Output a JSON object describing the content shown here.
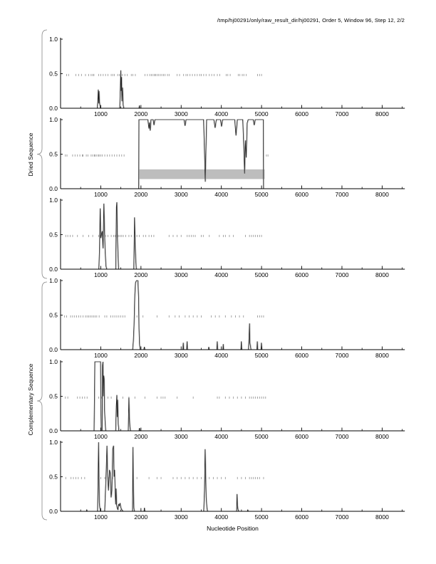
{
  "page": {
    "title": "/tmp/hj00291/only/raw_result_dir/hj00291, Order 5, Window 96, Step 12, 2/2",
    "xlabel": "Nucleotide Position"
  },
  "groups": [
    {
      "label": "Dried Sequence"
    },
    {
      "label": "Complementary Sequence"
    }
  ],
  "colors": {
    "curve": "#222222",
    "curve_shadow": "#aaaaaa",
    "rug": "#999999",
    "shade": "#bdbdbd",
    "axis": "#000000",
    "brace": "#888888"
  },
  "axes": {
    "x_domain": [
      0,
      8560
    ],
    "y_domain": [
      0,
      1
    ],
    "x_major_ticks": [
      1000,
      2000,
      3000,
      4000,
      5000,
      6000,
      7000,
      8000
    ],
    "x_minor_ticks": [
      500,
      1500,
      2500,
      3500,
      4500,
      5500,
      6500,
      7500,
      8500
    ],
    "y_ticks": [
      {
        "value": 1.0,
        "label": "1.0"
      },
      {
        "value": 0.5,
        "label": "0.5"
      },
      {
        "value": 0.0,
        "label": "0.0"
      }
    ]
  },
  "chart_data": [
    {
      "type": "line",
      "group": "Dried Sequence",
      "ylim": [
        0,
        1
      ],
      "xlim": [
        0,
        8560
      ],
      "rug_y": 0.48,
      "curve": [
        [
          0,
          0
        ],
        [
          910,
          0
        ],
        [
          925,
          0.1
        ],
        [
          935,
          0.27
        ],
        [
          945,
          0.07
        ],
        [
          955,
          0.25
        ],
        [
          965,
          0.1
        ],
        [
          975,
          0.05
        ],
        [
          990,
          0
        ],
        [
          1470,
          0
        ],
        [
          1485,
          0.3
        ],
        [
          1495,
          0.55
        ],
        [
          1505,
          0.25
        ],
        [
          1515,
          0.45
        ],
        [
          1525,
          0.1
        ],
        [
          1540,
          0.3
        ],
        [
          1555,
          0.05
        ],
        [
          1570,
          0
        ],
        [
          1950,
          0
        ],
        [
          1958,
          0.04
        ],
        [
          1966,
          0
        ],
        [
          8560,
          0
        ]
      ],
      "rug_x": [
        150,
        200,
        380,
        450,
        520,
        620,
        700,
        760,
        800,
        830,
        950,
        1000,
        1060,
        1120,
        1180,
        1260,
        1300,
        1340,
        1420,
        1460,
        1540,
        1600,
        1660,
        1760,
        1800,
        1860,
        2100,
        2160,
        2220,
        2260,
        2300,
        2340,
        2360,
        2400,
        2440,
        2480,
        2520,
        2560,
        2600,
        2660,
        2700,
        2900,
        2960,
        3060,
        3120,
        3160,
        3220,
        3280,
        3340,
        3400,
        3460,
        3500,
        3560,
        3620,
        3700,
        3760,
        3820,
        3900,
        3960,
        4120,
        4160,
        4220,
        4420,
        4460,
        4520,
        4560,
        4620,
        4900,
        4950,
        5000
      ]
    },
    {
      "type": "line",
      "group": "Dried Sequence",
      "ylim": [
        0,
        1
      ],
      "xlim": [
        0,
        8560
      ],
      "rug_y": 0.48,
      "shaded_region": {
        "x0": 1950,
        "x1": 5080,
        "y0": 0.14,
        "y1": 0.28
      },
      "curve": [
        [
          0,
          0
        ],
        [
          1942,
          0
        ],
        [
          1948,
          1
        ],
        [
          2170,
          1
        ],
        [
          2195,
          0.87
        ],
        [
          2210,
          0.96
        ],
        [
          2228,
          0.84
        ],
        [
          2248,
          1
        ],
        [
          2300,
          1
        ],
        [
          2322,
          0.92
        ],
        [
          2345,
          1
        ],
        [
          3070,
          1
        ],
        [
          3095,
          0.91
        ],
        [
          3120,
          1
        ],
        [
          3555,
          1
        ],
        [
          3580,
          0.5
        ],
        [
          3597,
          0.1
        ],
        [
          3614,
          0.55
        ],
        [
          3632,
          1
        ],
        [
          3810,
          1
        ],
        [
          3842,
          0.88
        ],
        [
          3872,
          1
        ],
        [
          3975,
          1
        ],
        [
          4002,
          0.9
        ],
        [
          4028,
          1
        ],
        [
          4330,
          1
        ],
        [
          4362,
          0.77
        ],
        [
          4395,
          1
        ],
        [
          4530,
          1
        ],
        [
          4556,
          0.6
        ],
        [
          4576,
          0.22
        ],
        [
          4596,
          0.7
        ],
        [
          4616,
          0.45
        ],
        [
          4640,
          0.95
        ],
        [
          4665,
          1
        ],
        [
          4790,
          1
        ],
        [
          4815,
          0.92
        ],
        [
          4840,
          1
        ],
        [
          5040,
          1
        ],
        [
          5047,
          0
        ],
        [
          8560,
          0
        ]
      ],
      "rug_x": [
        120,
        160,
        300,
        360,
        420,
        480,
        540,
        560,
        640,
        680,
        760,
        800,
        840,
        860,
        900,
        940,
        960,
        1000,
        1040,
        1100,
        1160,
        1220,
        1280,
        1340,
        1400,
        1460,
        1520,
        1580,
        5120,
        5160
      ]
    },
    {
      "type": "line",
      "group": "Dried Sequence",
      "ylim": [
        0,
        1
      ],
      "xlim": [
        0,
        8560
      ],
      "rug_y": 0.48,
      "curve": [
        [
          0,
          0
        ],
        [
          950,
          0
        ],
        [
          968,
          0.3
        ],
        [
          983,
          0.88
        ],
        [
          998,
          0.45
        ],
        [
          1015,
          0.5
        ],
        [
          1035,
          0.55
        ],
        [
          1055,
          0.3
        ],
        [
          1075,
          0.95
        ],
        [
          1090,
          0.6
        ],
        [
          1105,
          0.3
        ],
        [
          1125,
          0.05
        ],
        [
          1145,
          0
        ],
        [
          1370,
          0
        ],
        [
          1388,
          0.9
        ],
        [
          1398,
          0.97
        ],
        [
          1410,
          0.5
        ],
        [
          1422,
          0.3
        ],
        [
          1440,
          0
        ],
        [
          1820,
          0
        ],
        [
          1838,
          0.75
        ],
        [
          1852,
          0.4
        ],
        [
          1866,
          0.15
        ],
        [
          1882,
          0
        ],
        [
          8560,
          0
        ]
      ],
      "rug_x": [
        130,
        180,
        240,
        300,
        420,
        560,
        700,
        800,
        950,
        1000,
        1060,
        1120,
        1180,
        1260,
        1320,
        1360,
        1400,
        1440,
        1480,
        1520,
        1560,
        1620,
        1700,
        1760,
        1840,
        1900,
        1960,
        2060,
        2120,
        2200,
        2260,
        2320,
        2700,
        2800,
        2900,
        3000,
        3150,
        3200,
        3250,
        3300,
        3350,
        3500,
        3550,
        3700,
        3950,
        4050,
        4100,
        4200,
        4300,
        4600,
        4700,
        4750,
        4800,
        4850,
        4900,
        4950,
        5000
      ]
    },
    {
      "type": "line",
      "group": "Complementary Sequence",
      "ylim": [
        0,
        1
      ],
      "xlim": [
        0,
        8560
      ],
      "rug_y": 0.48,
      "curve": [
        [
          0,
          0
        ],
        [
          1790,
          0
        ],
        [
          1808,
          0.12
        ],
        [
          1825,
          0.35
        ],
        [
          1845,
          0.8
        ],
        [
          1862,
          0.97
        ],
        [
          1885,
          1
        ],
        [
          1922,
          1
        ],
        [
          1938,
          0.75
        ],
        [
          1950,
          0.3
        ],
        [
          1962,
          0.08
        ],
        [
          1978,
          0
        ],
        [
          2070,
          0
        ],
        [
          2082,
          0.04
        ],
        [
          2095,
          0
        ],
        [
          3040,
          0
        ],
        [
          3050,
          0.1
        ],
        [
          3060,
          0
        ],
        [
          3135,
          0
        ],
        [
          3145,
          0.12
        ],
        [
          3155,
          0
        ],
        [
          3675,
          0
        ],
        [
          3685,
          0.04
        ],
        [
          3695,
          0
        ],
        [
          3885,
          0
        ],
        [
          3895,
          0.12
        ],
        [
          3905,
          0
        ],
        [
          4035,
          0
        ],
        [
          4045,
          0.08
        ],
        [
          4055,
          0
        ],
        [
          4485,
          0
        ],
        [
          4495,
          0.12
        ],
        [
          4505,
          0
        ],
        [
          4672,
          0
        ],
        [
          4685,
          0.16
        ],
        [
          4698,
          0.38
        ],
        [
          4708,
          0.1
        ],
        [
          4722,
          0.05
        ],
        [
          4735,
          0
        ],
        [
          4882,
          0
        ],
        [
          4892,
          0.12
        ],
        [
          4902,
          0
        ],
        [
          4985,
          0
        ],
        [
          4995,
          0.1
        ],
        [
          5005,
          0
        ],
        [
          8560,
          0
        ]
      ],
      "rug_x": [
        100,
        150,
        250,
        300,
        350,
        400,
        450,
        500,
        560,
        620,
        660,
        700,
        740,
        780,
        820,
        860,
        900,
        960,
        1100,
        1150,
        1250,
        1300,
        1350,
        1400,
        1450,
        1500,
        1550,
        1600,
        1900,
        2050,
        2400,
        2700,
        2850,
        2950,
        3100,
        3200,
        3300,
        3400,
        3500,
        3750,
        3850,
        3950,
        4100,
        4250,
        4350,
        4450,
        4550,
        4900,
        4950,
        5000,
        5050
      ]
    },
    {
      "type": "line",
      "group": "Complementary Sequence",
      "ylim": [
        0,
        1
      ],
      "xlim": [
        0,
        8560
      ],
      "rug_y": 0.48,
      "curve": [
        [
          0,
          0
        ],
        [
          832,
          0
        ],
        [
          843,
          0.6
        ],
        [
          850,
          1
        ],
        [
          993,
          1
        ],
        [
          1000,
          0.35
        ],
        [
          1010,
          0
        ],
        [
          1032,
          0
        ],
        [
          1042,
          0.95
        ],
        [
          1052,
          1
        ],
        [
          1062,
          0.5
        ],
        [
          1072,
          0.8
        ],
        [
          1082,
          0.75
        ],
        [
          1092,
          0.3
        ],
        [
          1105,
          0.15
        ],
        [
          1120,
          0
        ],
        [
          1368,
          0
        ],
        [
          1385,
          0.35
        ],
        [
          1398,
          0.52
        ],
        [
          1408,
          0.2
        ],
        [
          1418,
          0.45
        ],
        [
          1432,
          0.1
        ],
        [
          1450,
          0
        ],
        [
          1682,
          0
        ],
        [
          1698,
          0.48
        ],
        [
          1710,
          0.2
        ],
        [
          1722,
          0.06
        ],
        [
          1738,
          0
        ],
        [
          1950,
          0
        ],
        [
          1960,
          0.04
        ],
        [
          1972,
          0
        ],
        [
          8560,
          0
        ]
      ],
      "rug_x": [
        120,
        180,
        420,
        480,
        540,
        600,
        660,
        950,
        1020,
        1100,
        1180,
        1260,
        1400,
        1550,
        1700,
        1850,
        2100,
        2400,
        2500,
        2550,
        2600,
        2900,
        3300,
        3900,
        3950,
        4100,
        4200,
        4300,
        4400,
        4500,
        4600,
        4700,
        4750,
        4800,
        4850,
        4900,
        4950,
        5000,
        5050,
        5100
      ]
    },
    {
      "type": "line",
      "group": "Complementary Sequence",
      "ylim": [
        0,
        1
      ],
      "xlim": [
        0,
        8560
      ],
      "rug_y": 0.48,
      "curve": [
        [
          0,
          0
        ],
        [
          640,
          0
        ],
        [
          650,
          0.02
        ],
        [
          660,
          0
        ],
        [
          918,
          0
        ],
        [
          932,
          0.5
        ],
        [
          942,
          1
        ],
        [
          952,
          0.6
        ],
        [
          962,
          0.12
        ],
        [
          975,
          0.05
        ],
        [
          990,
          0
        ],
        [
          1095,
          0
        ],
        [
          1115,
          0.3
        ],
        [
          1135,
          0.6
        ],
        [
          1152,
          0.95
        ],
        [
          1170,
          0.5
        ],
        [
          1190,
          0.3
        ],
        [
          1215,
          0.6
        ],
        [
          1235,
          0.55
        ],
        [
          1255,
          0.2
        ],
        [
          1275,
          0.3
        ],
        [
          1295,
          0.9
        ],
        [
          1315,
          0.95
        ],
        [
          1330,
          0.5
        ],
        [
          1342,
          0.6
        ],
        [
          1355,
          0.3
        ],
        [
          1368,
          0.1
        ],
        [
          1380,
          0.33
        ],
        [
          1392,
          0.1
        ],
        [
          1405,
          0.05
        ],
        [
          1425,
          0.02
        ],
        [
          1442,
          0.1
        ],
        [
          1460,
          0.08
        ],
        [
          1478,
          0.12
        ],
        [
          1498,
          0.05
        ],
        [
          1525,
          0.02
        ],
        [
          1555,
          0
        ],
        [
          1788,
          0
        ],
        [
          1798,
          0.93
        ],
        [
          1810,
          0.3
        ],
        [
          1822,
          0.05
        ],
        [
          1835,
          0
        ],
        [
          2075,
          0
        ],
        [
          2085,
          0.05
        ],
        [
          2095,
          0
        ],
        [
          3558,
          0
        ],
        [
          3578,
          0.3
        ],
        [
          3595,
          0.9
        ],
        [
          3608,
          0.5
        ],
        [
          3620,
          0.2
        ],
        [
          3638,
          0.05
        ],
        [
          3655,
          0
        ],
        [
          4378,
          0
        ],
        [
          4388,
          0.25
        ],
        [
          4398,
          0.08
        ],
        [
          4412,
          0.03
        ],
        [
          4430,
          0
        ],
        [
          4645,
          0
        ],
        [
          4655,
          0.02
        ],
        [
          4668,
          0
        ],
        [
          8560,
          0
        ]
      ],
      "rug_x": [
        130,
        260,
        320,
        380,
        440,
        520,
        600,
        940,
        1000,
        1100,
        1200,
        1300,
        1800,
        1900,
        2200,
        2400,
        2500,
        2800,
        2900,
        3000,
        3100,
        3200,
        3300,
        3400,
        3500,
        3600,
        3700,
        3800,
        3900,
        4000,
        4100,
        4400,
        4500,
        4600,
        4700,
        4750,
        4800,
        4850,
        4900,
        4950,
        5050
      ]
    }
  ]
}
